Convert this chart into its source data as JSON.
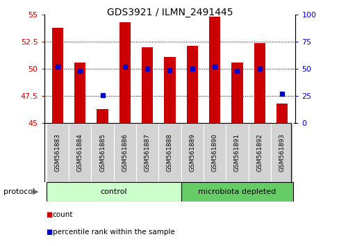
{
  "title": "GDS3921 / ILMN_2491445",
  "samples": [
    "GSM561883",
    "GSM561884",
    "GSM561885",
    "GSM561886",
    "GSM561887",
    "GSM561888",
    "GSM561889",
    "GSM561890",
    "GSM561891",
    "GSM561892",
    "GSM561893"
  ],
  "count_values": [
    53.8,
    50.6,
    46.3,
    54.3,
    52.0,
    51.1,
    52.1,
    54.8,
    50.6,
    52.4,
    46.8
  ],
  "percentile_values": [
    52,
    48,
    26,
    52,
    50,
    49,
    50,
    52,
    48,
    50,
    27
  ],
  "ylim_left": [
    45,
    55
  ],
  "ylim_right": [
    0,
    100
  ],
  "yticks_left": [
    45,
    47.5,
    50,
    52.5,
    55
  ],
  "yticks_right": [
    0,
    25,
    50,
    75,
    100
  ],
  "bar_color": "#cc0000",
  "dot_color": "#0000cc",
  "bar_width": 0.5,
  "baseline": 45,
  "control_label": "control",
  "microbiota_label": "microbiota depleted",
  "control_color": "#ccffcc",
  "microbiota_color": "#66cc66",
  "protocol_label": "protocol",
  "legend_count": "count",
  "legend_pct": "percentile rank within the sample",
  "n_control": 6,
  "n_microbiota": 5,
  "title_fontsize": 10,
  "tick_fontsize": 8,
  "label_fontsize": 8,
  "sample_fontsize": 6.5
}
